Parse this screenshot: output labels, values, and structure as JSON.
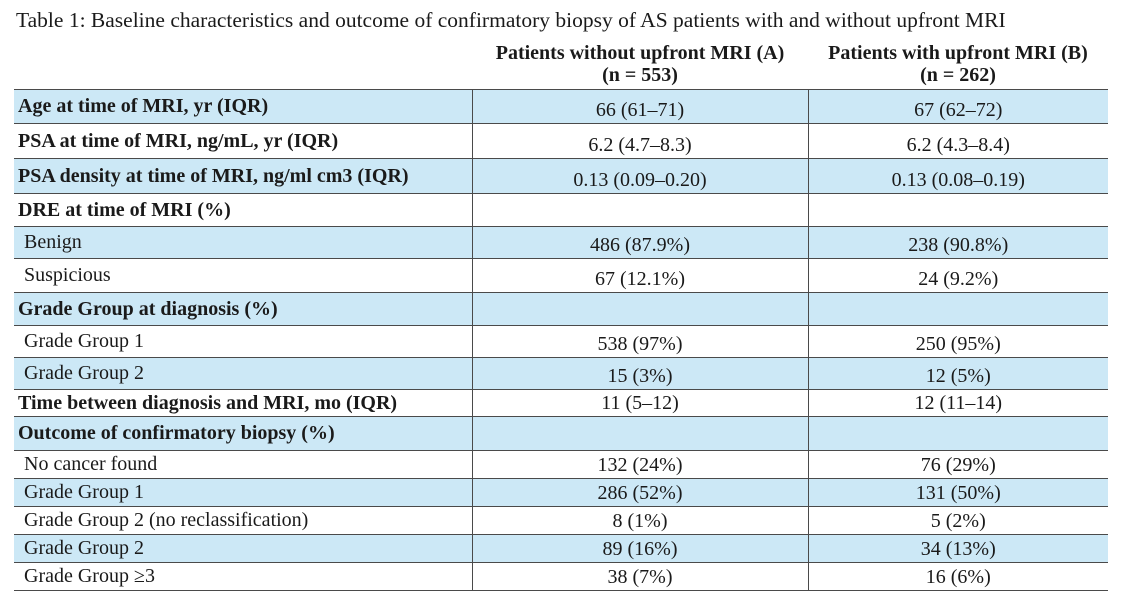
{
  "table": {
    "caption": "Table  1: Baseline characteristics and outcome of confirmatory biopsy of AS patients with and without upfront MRI",
    "columns": [
      {
        "title": "Patients without upfront MRI (A)",
        "n": "(n = 553)"
      },
      {
        "title": "Patients with upfront MRI (B)",
        "n": "(n = 262)"
      }
    ],
    "rows": [
      {
        "label": "Age at time of MRI, yr (IQR)",
        "a": "66 (61–71)",
        "b": "67 (62–72)"
      },
      {
        "label": "PSA at time of MRI, ng/mL, yr (IQR)",
        "a": "6.2 (4.7–8.3)",
        "b": "6.2 (4.3–8.4)"
      },
      {
        "label": "PSA density at time of MRI, ng/ml cm3 (IQR)",
        "a": "0.13 (0.09–0.20)",
        "b": "0.13 (0.08–0.19)"
      },
      {
        "label": "DRE at time of MRI (%)",
        "a": "",
        "b": ""
      },
      {
        "label": "Benign",
        "a": "486 (87.9%)",
        "b": "238 (90.8%)"
      },
      {
        "label": "Suspicious",
        "a": "67 (12.1%)",
        "b": "24 (9.2%)"
      },
      {
        "label": "Grade Group at diagnosis (%)",
        "a": "",
        "b": ""
      },
      {
        "label": "Grade Group 1",
        "a": "538 (97%)",
        "b": "250 (95%)"
      },
      {
        "label": "Grade Group 2",
        "a": "15 (3%)",
        "b": "12 (5%)"
      },
      {
        "label": "Time between diagnosis and MRI, mo (IQR)",
        "a": "11 (5–12)",
        "b": "12 (11–14)"
      },
      {
        "label": "Outcome of confirmatory biopsy (%)",
        "a": "",
        "b": ""
      },
      {
        "label": "No cancer found",
        "a": "132 (24%)",
        "b": "76 (29%)"
      },
      {
        "label": "Grade Group 1",
        "a": "286 (52%)",
        "b": "131 (50%)"
      },
      {
        "label": "Grade Group 2 (no reclassification)",
        "a": "8 (1%)",
        "b": "5 (2%)"
      },
      {
        "label": "Grade Group 2",
        "a": "89 (16%)",
        "b": "34 (13%)"
      },
      {
        "label": "Grade Group ≥3",
        "a": "38 (7%)",
        "b": "16 (6%)"
      }
    ]
  },
  "colors": {
    "row_highlight": "#cce8f6",
    "rule": "#4a4a4a",
    "text": "#1a1a1a"
  }
}
